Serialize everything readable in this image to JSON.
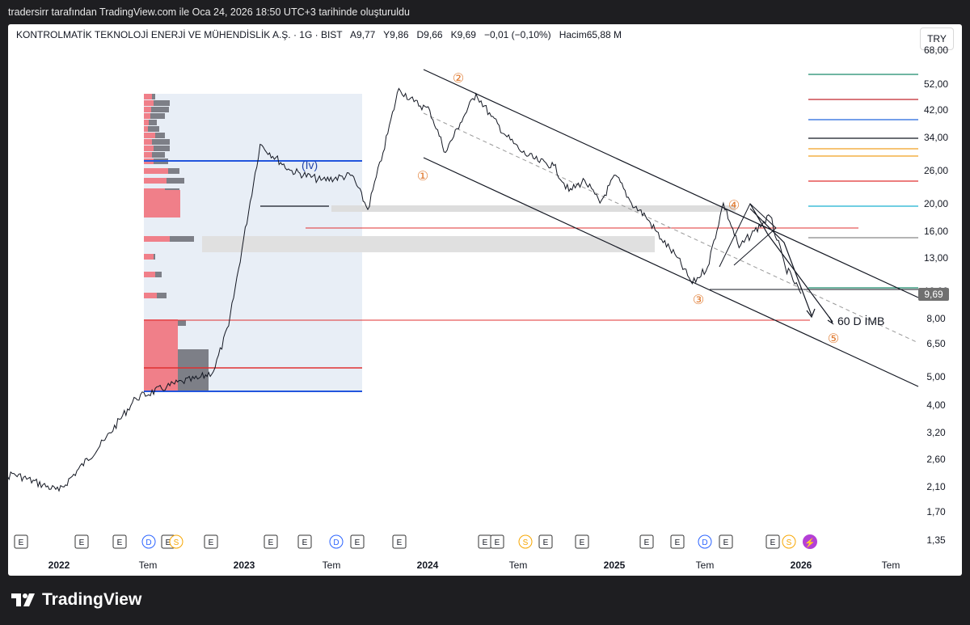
{
  "caption": "tradersirr tarafından TradingView.com ile Oca 24, 2026 18:50 UTC+3 tarihinde oluşturuldu",
  "header": {
    "symbol_line": "KONTROLMATİK TEKNOLOJİ ENERJİ VE MÜHENDİSLİK A.Ş. · 1G · BIST",
    "o": "A9,77",
    "h": "Y9,86",
    "l": "D9,66",
    "c": "K9,69",
    "change": "−0,01 (−0,10%)",
    "volume": "Hacim65,88 M",
    "currency": "TRY"
  },
  "brand": "TradingView",
  "colors": {
    "candle": "#131722",
    "grid_bg": "#ffffff",
    "profile_bg": "#e8eef6",
    "vp_up": "#f07f89",
    "vp_down": "#7d7f87",
    "blue": "#2255dd",
    "red": "#e03030",
    "orange": "#e07a30",
    "price_badge": "#707070"
  },
  "chart_data": {
    "type": "line",
    "title": "",
    "log_scale": true,
    "y_axis_ticks": [
      "68,00",
      "52,00",
      "42,00",
      "34,00",
      "26,00",
      "20,00",
      "16,00",
      "13,00",
      "10,00",
      "8,00",
      "6,50",
      "5,00",
      "4,00",
      "3,20",
      "2,60",
      "2,10",
      "1,70",
      "1,35"
    ],
    "x_axis_ticks": [
      "2022",
      "Tem",
      "2023",
      "Tem",
      "2024",
      "Tem",
      "2025",
      "Tem",
      "2026",
      "Tem"
    ],
    "last_price": "9,69",
    "series": [
      {
        "x": [
          "2021-07",
          "2021-10",
          "2022-01",
          "2022-04",
          "2022-06",
          "2022-08",
          "2022-09",
          "2022-10",
          "2022-11",
          "2022-12",
          "2023-02",
          "2023-04",
          "2023-06",
          "2023-08",
          "2023-09",
          "2023-10",
          "2023-11",
          "2023-12",
          "2024-01",
          "2024-02",
          "2024-03",
          "2024-04",
          "2024-05",
          "2024-06",
          "2024-07",
          "2024-08",
          "2024-09",
          "2024-10",
          "2024-11",
          "2024-12",
          "2025-01",
          "2025-02",
          "2025-03",
          "2025-04",
          "2025-05",
          "2025-06",
          "2025-07",
          "2025-08",
          "2025-09",
          "2025-10",
          "2025-11",
          "2025-12",
          "2026-01"
        ],
        "values": [
          1.8,
          2.3,
          2.0,
          3.0,
          4.2,
          4.6,
          4.8,
          4.9,
          5.2,
          7.5,
          32,
          26,
          24,
          25,
          19,
          30,
          50,
          45,
          42,
          30,
          38,
          48,
          40,
          34,
          30,
          28,
          27,
          22,
          24,
          20,
          25,
          20,
          18,
          15,
          13,
          10.5,
          12,
          20,
          14,
          16,
          18,
          12,
          9.69
        ]
      }
    ],
    "annotations": [
      "(Iv)",
      "①",
      "②",
      "③",
      "④",
      "⑤",
      "60 D İMB"
    ],
    "axis_markers": [
      "E",
      "E",
      "E",
      "D",
      "E",
      "S",
      "E",
      "E",
      "E",
      "D",
      "E",
      "E",
      "E",
      "S",
      "E",
      "E",
      "E",
      "E",
      "D",
      "E",
      "E",
      "S"
    ]
  }
}
